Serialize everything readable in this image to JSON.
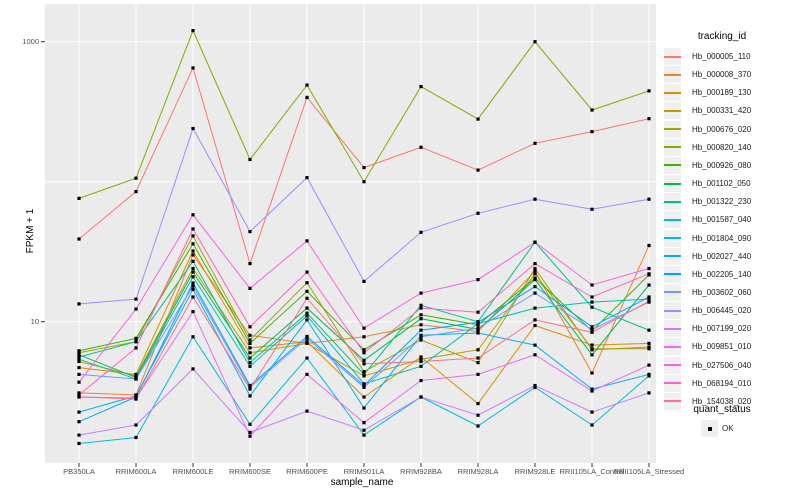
{
  "legend": {
    "tracking_title": "tracking_id",
    "quant_title": "quant_status",
    "quant_label": "OK"
  },
  "chart_data": {
    "type": "line",
    "title": "",
    "xlabel": "sample_name",
    "ylabel": "FPKM + 1",
    "y_scale": "log10",
    "ylim": [
      1,
      1700
    ],
    "grid": "on",
    "legend_position": "right",
    "panel_background": "#EBEBEB",
    "gridline_color": "#FFFFFF",
    "point_shape": "square",
    "point_color": "#000000",
    "y_ticks": [
      {
        "value": 1000,
        "label": "1000"
      },
      {
        "value": 10,
        "label": "10"
      }
    ],
    "gridline_values": [
      10,
      100,
      1000
    ],
    "categories": [
      "PB350LA",
      "RRIM600LA",
      "RRIM600LE",
      "RRIM600SE",
      "RRIM600PE",
      "RRIM901LA",
      "RRIM928BA",
      "RRIM928LA",
      "RRIM928LE",
      "RRII105LA_Control",
      "RRII105LA_Stressed"
    ],
    "series": [
      {
        "name": "Hb_000005_110",
        "color": "#F8766D",
        "values": [
          39,
          85,
          650,
          26,
          400,
          126,
          176,
          121,
          188,
          228,
          282
        ]
      },
      {
        "name": "Hb_000008_370",
        "color": "#EA8331",
        "values": [
          3.1,
          3.0,
          30,
          8.0,
          7.0,
          7.8,
          9.5,
          8.5,
          23,
          4.3,
          35
        ]
      },
      {
        "name": "Hb_000189_130",
        "color": "#D89000",
        "values": [
          4.7,
          4.2,
          32,
          6.5,
          7.2,
          2.9,
          5.6,
          2.6,
          9.4,
          6.8,
          7.0
        ]
      },
      {
        "name": "Hb_000331_420",
        "color": "#C09B00",
        "values": [
          5.2,
          4.1,
          24,
          6.0,
          7.0,
          4.1,
          5.4,
          6.3,
          22,
          6.4,
          6.4
        ]
      },
      {
        "name": "Hb_000676_020",
        "color": "#A3A500",
        "values": [
          6.0,
          7.2,
          41,
          7.4,
          19,
          4.4,
          7.4,
          5.1,
          24,
          6.3,
          6.6
        ]
      },
      {
        "name": "Hb_000820_140",
        "color": "#7CAE00",
        "values": [
          76,
          106,
          1200,
          144,
          490,
          100,
          478,
          280,
          1000,
          325,
          445
        ]
      },
      {
        "name": "Hb_000926_080",
        "color": "#39B600",
        "values": [
          6.2,
          7.6,
          36,
          7.0,
          16.5,
          6.3,
          11.2,
          9.5,
          20.5,
          8.6,
          21.6
        ]
      },
      {
        "name": "Hb_001102_050",
        "color": "#00BB4E",
        "values": [
          5.8,
          4.0,
          22.6,
          5.5,
          12.5,
          5.3,
          10.5,
          8.8,
          20,
          5.8,
          18.3
        ]
      },
      {
        "name": "Hb_001322_230",
        "color": "#00C087",
        "values": [
          5.6,
          7.2,
          27,
          5.1,
          11.5,
          4.2,
          13.1,
          10,
          37,
          12.7,
          8.7
        ]
      },
      {
        "name": "Hb_001587_040",
        "color": "#00C0B8",
        "values": [
          5.4,
          3.9,
          20.9,
          4.8,
          11,
          3.6,
          4.8,
          9.7,
          12.5,
          13.8,
          14.5
        ]
      },
      {
        "name": "Hb_001804_090",
        "color": "#00BCD8",
        "values": [
          1.35,
          1.49,
          7.8,
          1.85,
          5.5,
          1.55,
          2.9,
          1.8,
          3.4,
          1.83,
          4.1
        ]
      },
      {
        "name": "Hb_002027_440",
        "color": "#00B0F6",
        "values": [
          2.26,
          2.95,
          17,
          2.95,
          10.3,
          2.42,
          8.0,
          8.3,
          6.8,
          3.3,
          4.2
        ]
      },
      {
        "name": "Hb_002205_140",
        "color": "#00A5FF",
        "values": [
          1.93,
          2.9,
          18.9,
          3.5,
          7.85,
          3.5,
          8.7,
          9.9,
          17.8,
          9.2,
          15
        ]
      },
      {
        "name": "Hb_003602_060",
        "color": "#7997FF",
        "values": [
          4.2,
          3.9,
          18,
          3.4,
          7.6,
          3.4,
          7.8,
          9.0,
          16,
          8.8,
          13.8
        ]
      },
      {
        "name": "Hb_006445_020",
        "color": "#9590FF",
        "values": [
          13.4,
          14.5,
          240,
          44,
          107,
          19.4,
          43.5,
          59.5,
          75,
          63.5,
          75
        ]
      },
      {
        "name": "Hb_007199_020",
        "color": "#C77CFF",
        "values": [
          1.55,
          1.83,
          4.6,
          1.62,
          2.3,
          1.68,
          2.9,
          2.15,
          3.5,
          2.26,
          3.1
        ]
      },
      {
        "name": "Hb_009851_010",
        "color": "#E76BF3",
        "values": [
          2.9,
          2.85,
          11.8,
          1.52,
          4.2,
          1.9,
          3.8,
          4.2,
          5.8,
          3.2,
          4.9
        ]
      },
      {
        "name": "Hb_027506_040",
        "color": "#F763E0",
        "values": [
          3.7,
          12.3,
          58,
          17.3,
          37.8,
          9.0,
          16,
          20,
          37,
          18.3,
          24
        ]
      },
      {
        "name": "Hb_068194_010",
        "color": "#FF61C3",
        "values": [
          3.0,
          6.5,
          46,
          9.2,
          22.6,
          6.0,
          12.5,
          11.7,
          26,
          15,
          22
        ]
      },
      {
        "name": "Hb_154038_020",
        "color": "#FF6C91",
        "values": [
          2.9,
          2.8,
          15,
          3.3,
          14.7,
          5.0,
          5.2,
          5.5,
          10.3,
          8.4,
          14
        ]
      }
    ],
    "quant_status": {
      "title": "quant_status",
      "items": [
        "OK"
      ]
    }
  }
}
